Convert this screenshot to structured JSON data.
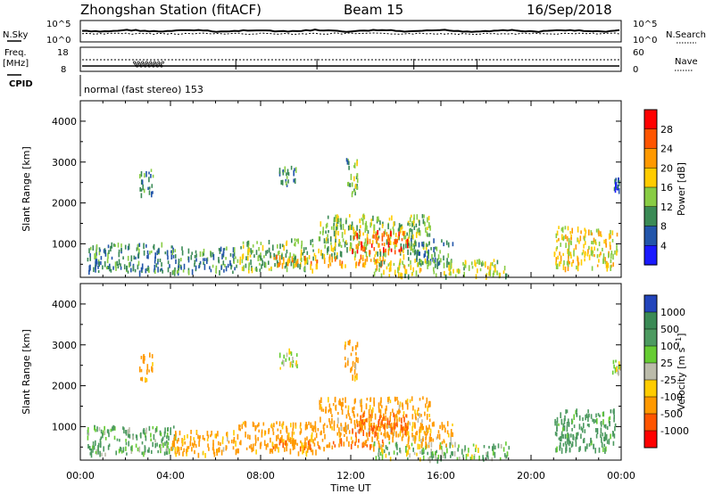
{
  "header": {
    "station": "Zhongshan Station (fitACF)",
    "beam": "Beam 15",
    "date": "16/Sep/2018"
  },
  "strips": {
    "nsky_label": "N.Sky",
    "nsky_ticks": [
      "10^5",
      "10^0"
    ],
    "nsearch_label": "N.Search",
    "nsearch_ticks": [
      "10^5",
      "10^0"
    ],
    "freq_label": "Freq.",
    "freq_unit": "[MHz]",
    "freq_ticks": [
      "18",
      "8"
    ],
    "nave_label": "Nave",
    "nave_ticks": [
      "60",
      "0"
    ],
    "cpid_label": "CPID",
    "cpid_text": "normal (fast stereo) 153"
  },
  "chart_data": [
    {
      "type": "heatmap",
      "quantity": "Power",
      "colorbar_label": "Power [dB]",
      "colorbar_ticks": [
        "28",
        "24",
        "20",
        "16",
        "12",
        "8",
        "4"
      ],
      "colorbar_colors": [
        "#ff0000",
        "#ff5500",
        "#ff9900",
        "#ffcc00",
        "#88cc44",
        "#3a8a55",
        "#2255aa",
        "#1a1aff"
      ],
      "ylabel": "Slant Range [km]",
      "yticks": [
        "4000",
        "3000",
        "2000",
        "1000"
      ],
      "ylim": [
        180,
        4500
      ],
      "xlim": [
        "00:00",
        "24:00"
      ],
      "echo_regions": [
        {
          "t0": 0.3,
          "t1": 4.2,
          "r0": 300,
          "r1": 1000,
          "p": 9
        },
        {
          "t0": 4.0,
          "t1": 7.0,
          "r0": 300,
          "r1": 900,
          "p": 9
        },
        {
          "t0": 7.0,
          "t1": 10.5,
          "r0": 350,
          "r1": 1100,
          "p": 13
        },
        {
          "t0": 8.5,
          "t1": 13.5,
          "r0": 450,
          "r1": 700,
          "p": 22
        },
        {
          "t0": 10.5,
          "t1": 15.5,
          "r0": 700,
          "r1": 1700,
          "p": 14
        },
        {
          "t0": 12.0,
          "t1": 14.5,
          "r0": 800,
          "r1": 1300,
          "p": 25
        },
        {
          "t0": 13.0,
          "t1": 19.0,
          "r0": 200,
          "r1": 600,
          "p": 16
        },
        {
          "t0": 14.5,
          "t1": 16.5,
          "r0": 500,
          "r1": 1100,
          "p": 10
        },
        {
          "t0": 2.6,
          "t1": 3.2,
          "r0": 2100,
          "r1": 2800,
          "p": 10
        },
        {
          "t0": 8.8,
          "t1": 9.6,
          "r0": 2400,
          "r1": 2900,
          "p": 9
        },
        {
          "t0": 11.7,
          "t1": 12.3,
          "r0": 2200,
          "r1": 3100,
          "p": 12
        },
        {
          "t0": 21.0,
          "t1": 23.8,
          "r0": 400,
          "r1": 1400,
          "p": 18
        },
        {
          "t0": 23.6,
          "t1": 24.0,
          "r0": 2300,
          "r1": 2600,
          "p": 6
        }
      ]
    },
    {
      "type": "heatmap",
      "quantity": "Velocity",
      "colorbar_label": "Velocity [m s^-1]",
      "colorbar_ticks": [
        "1000",
        "500",
        "100",
        "25",
        "-25",
        "-100",
        "-500",
        "-1000"
      ],
      "colorbar_colors": [
        "#2244bb",
        "#3a8a55",
        "#4c9a60",
        "#66cc33",
        "#bbbbaa",
        "#ffcc00",
        "#ff9900",
        "#ff5500",
        "#ff0000"
      ],
      "ylabel": "Slant Range [km]",
      "yticks": [
        "4000",
        "3000",
        "2000",
        "1000"
      ],
      "ylim": [
        180,
        4500
      ],
      "xticks": [
        "00:00",
        "04:00",
        "08:00",
        "12:00",
        "16:00",
        "20:00",
        "00:00"
      ],
      "xlabel": "Time UT",
      "echo_regions": [
        {
          "t0": 0.3,
          "t1": 4.2,
          "r0": 300,
          "r1": 1000,
          "v": 150
        },
        {
          "t0": 4.0,
          "t1": 7.0,
          "r0": 300,
          "r1": 900,
          "v": -200
        },
        {
          "t0": 7.0,
          "t1": 10.5,
          "r0": 350,
          "r1": 1100,
          "v": -250
        },
        {
          "t0": 8.5,
          "t1": 13.5,
          "r0": 450,
          "r1": 700,
          "v": -400
        },
        {
          "t0": 10.5,
          "t1": 15.5,
          "r0": 700,
          "r1": 1700,
          "v": -200
        },
        {
          "t0": 12.0,
          "t1": 14.5,
          "r0": 800,
          "r1": 1300,
          "v": -600
        },
        {
          "t0": 13.0,
          "t1": 19.0,
          "r0": 200,
          "r1": 600,
          "v": 80
        },
        {
          "t0": 14.5,
          "t1": 16.5,
          "r0": 500,
          "r1": 1100,
          "v": -150
        },
        {
          "t0": 2.6,
          "t1": 3.2,
          "r0": 2100,
          "r1": 2800,
          "v": -300
        },
        {
          "t0": 8.8,
          "t1": 9.6,
          "r0": 2400,
          "r1": 2900,
          "v": 0
        },
        {
          "t0": 11.7,
          "t1": 12.3,
          "r0": 2200,
          "r1": 3100,
          "v": -150
        },
        {
          "t0": 21.0,
          "t1": 23.8,
          "r0": 400,
          "r1": 1400,
          "v": 300
        },
        {
          "t0": 23.6,
          "t1": 24.0,
          "r0": 2300,
          "r1": 2600,
          "v": 0
        }
      ]
    }
  ]
}
